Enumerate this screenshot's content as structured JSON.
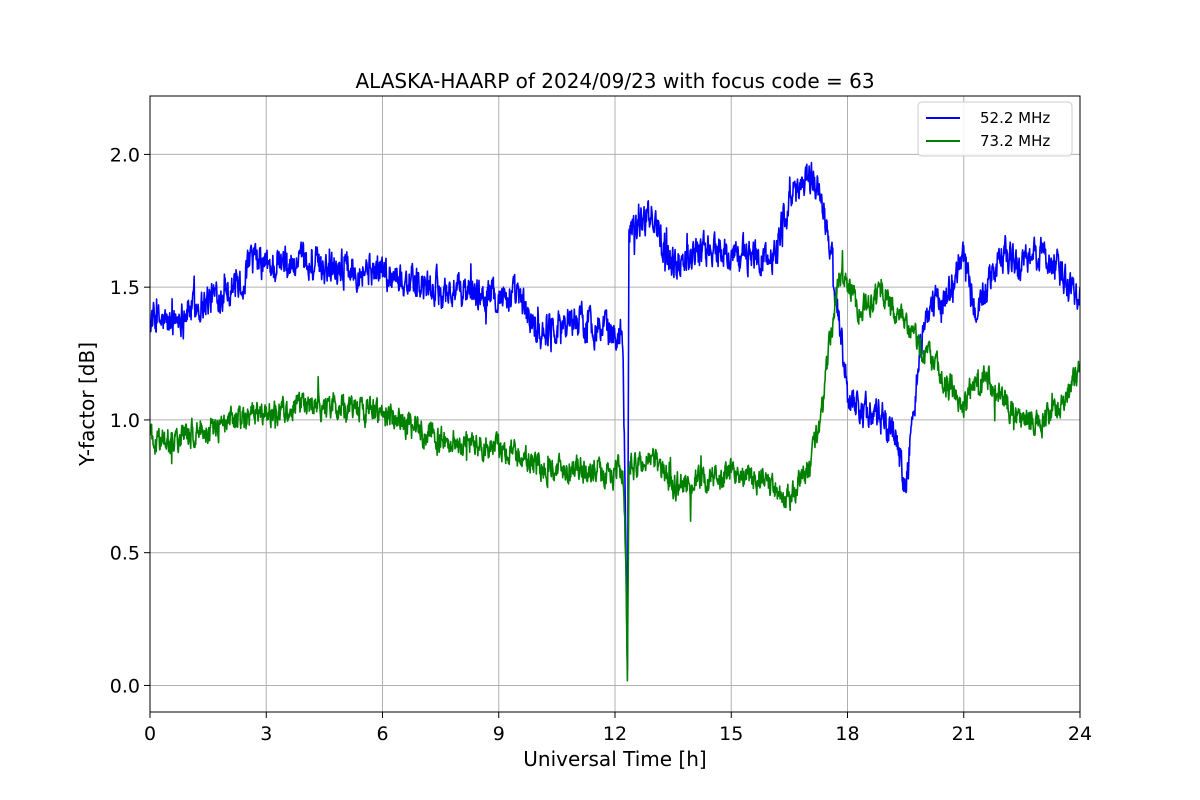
{
  "chart_data": {
    "type": "line",
    "title": "ALASKA-HAARP of 2024/09/23 with focus code = 63",
    "xlabel": "Universal Time [h]",
    "ylabel": "Y-factor [dB]",
    "xlim": [
      0,
      24
    ],
    "ylim": [
      -0.1,
      2.22
    ],
    "xticks": [
      0,
      3,
      6,
      9,
      12,
      15,
      18,
      21,
      24
    ],
    "xtick_labels": [
      "0",
      "3",
      "6",
      "9",
      "12",
      "15",
      "18",
      "21",
      "24"
    ],
    "yticks": [
      0.0,
      0.5,
      1.0,
      1.5,
      2.0
    ],
    "ytick_labels": [
      "0.0",
      "0.5",
      "1.0",
      "1.5",
      "2.0"
    ],
    "grid": true,
    "legend_position": "top-right",
    "series": [
      {
        "name": "52.2 MHz",
        "color": "#0000ff",
        "noise": 0.07,
        "x": [
          0,
          0.5,
          1,
          1.5,
          2,
          2.4,
          2.6,
          3,
          4,
          5,
          6,
          7,
          8,
          9,
          9.5,
          10,
          10.5,
          11,
          11.5,
          12,
          12.2,
          12.28,
          12.32,
          12.36,
          12.5,
          13,
          13.5,
          14,
          14.5,
          15,
          15.5,
          16,
          16.5,
          17,
          17.3,
          17.6,
          17.8,
          18.0,
          18.3,
          18.6,
          18.9,
          19.2,
          19.5,
          19.8,
          20.0,
          20.5,
          21,
          21.3,
          21.6,
          22,
          22.5,
          23,
          23.5,
          24
        ],
        "y": [
          1.38,
          1.36,
          1.42,
          1.45,
          1.5,
          1.52,
          1.6,
          1.58,
          1.58,
          1.58,
          1.56,
          1.5,
          1.48,
          1.47,
          1.46,
          1.33,
          1.36,
          1.38,
          1.35,
          1.32,
          1.33,
          0.55,
          0.05,
          1.72,
          1.74,
          1.76,
          1.58,
          1.64,
          1.64,
          1.62,
          1.62,
          1.6,
          1.82,
          1.93,
          1.85,
          1.6,
          1.35,
          1.1,
          1.05,
          1.02,
          1.0,
          0.95,
          0.75,
          1.15,
          1.4,
          1.45,
          1.62,
          1.4,
          1.5,
          1.62,
          1.58,
          1.63,
          1.55,
          1.48
        ]
      },
      {
        "name": "73.2 MHz",
        "color": "#008000",
        "noise": 0.055,
        "x": [
          0,
          0.5,
          1,
          1.5,
          2,
          2.5,
          3,
          4,
          5,
          6,
          7,
          8,
          9,
          9.5,
          10,
          10.5,
          11,
          11.5,
          12,
          12.2,
          12.28,
          12.32,
          12.36,
          12.5,
          13,
          13.5,
          14,
          14.5,
          15,
          15.5,
          16,
          16.5,
          17,
          17.3,
          17.6,
          17.8,
          18.0,
          18.3,
          18.6,
          18.9,
          19.2,
          19.5,
          19.8,
          20.0,
          20.5,
          21,
          21.3,
          21.6,
          22,
          22.5,
          23,
          23.5,
          24
        ],
        "y": [
          0.92,
          0.92,
          0.95,
          0.96,
          0.98,
          1.02,
          1.03,
          1.05,
          1.05,
          1.03,
          0.95,
          0.91,
          0.9,
          0.87,
          0.82,
          0.82,
          0.82,
          0.8,
          0.8,
          0.82,
          0.45,
          0.02,
          0.8,
          0.82,
          0.86,
          0.75,
          0.76,
          0.78,
          0.8,
          0.78,
          0.76,
          0.7,
          0.82,
          1.0,
          1.35,
          1.55,
          1.52,
          1.42,
          1.45,
          1.5,
          1.4,
          1.35,
          1.3,
          1.25,
          1.15,
          1.05,
          1.15,
          1.18,
          1.08,
          1.0,
          0.98,
          1.05,
          1.22
        ]
      }
    ]
  }
}
